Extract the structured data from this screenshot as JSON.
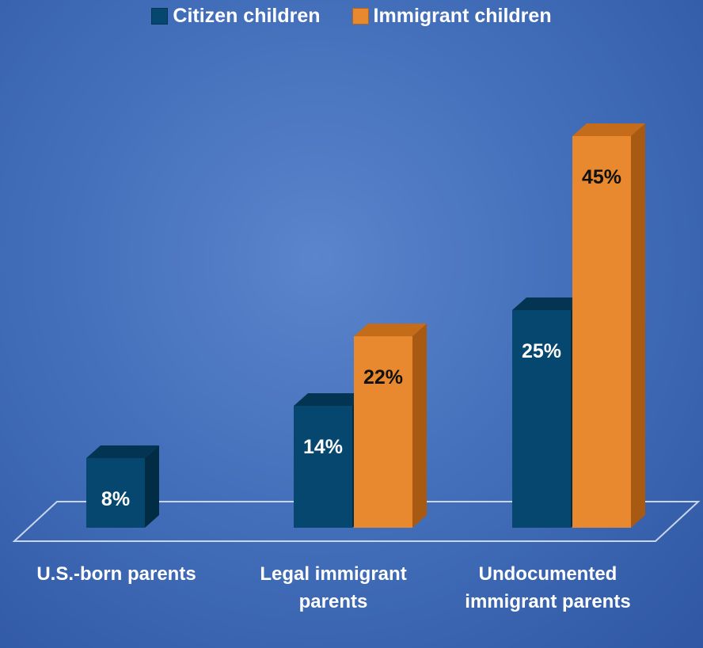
{
  "chart_data": {
    "type": "bar",
    "title": "",
    "xlabel": "",
    "ylabel": "",
    "ylim": [
      0,
      50
    ],
    "grid": false,
    "legend_position": "top",
    "categories": [
      "U.S.-born parents",
      "Legal immigrant parents",
      "Undocumented immigrant parents"
    ],
    "series": [
      {
        "name": "Citizen children",
        "color": "#05476e",
        "values": [
          8,
          14,
          25
        ],
        "labels": [
          "8%",
          "14%",
          "25%"
        ]
      },
      {
        "name": "Immigrant children",
        "color": "#e8882f",
        "values": [
          null,
          22,
          45
        ],
        "labels": [
          "",
          "22%",
          "45%"
        ]
      }
    ]
  }
}
